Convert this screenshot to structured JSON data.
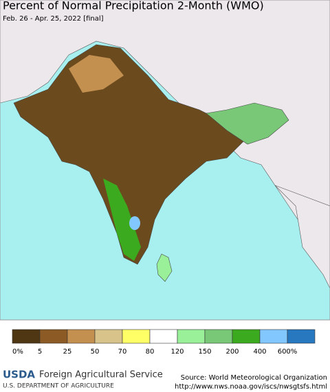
{
  "header": {
    "title": "Percent of Normal Precipitation 2-Month (WMO)",
    "subtitle": "Feb. 26 - Apr. 25, 2022 [final]"
  },
  "legend": {
    "colors": [
      "#4f3714",
      "#8b5a25",
      "#c49050",
      "#d8c48a",
      "#ffff66",
      "#ffffff",
      "#99f099",
      "#78c878",
      "#3caa1e",
      "#82c8ff",
      "#2878c0"
    ],
    "labels": [
      "0%",
      "5",
      "25",
      "50",
      "70",
      "80",
      "120",
      "150",
      "200",
      "400",
      "600%"
    ]
  },
  "footer": {
    "logo": "USDA",
    "agency": "Foreign Agricultural Service",
    "department": "U.S. DEPARTMENT OF AGRICULTURE",
    "source": "Source: World Meteorological Organization",
    "url": "http://www.nws.noaa.gov/iscs/nwsgtsfs.html"
  }
}
